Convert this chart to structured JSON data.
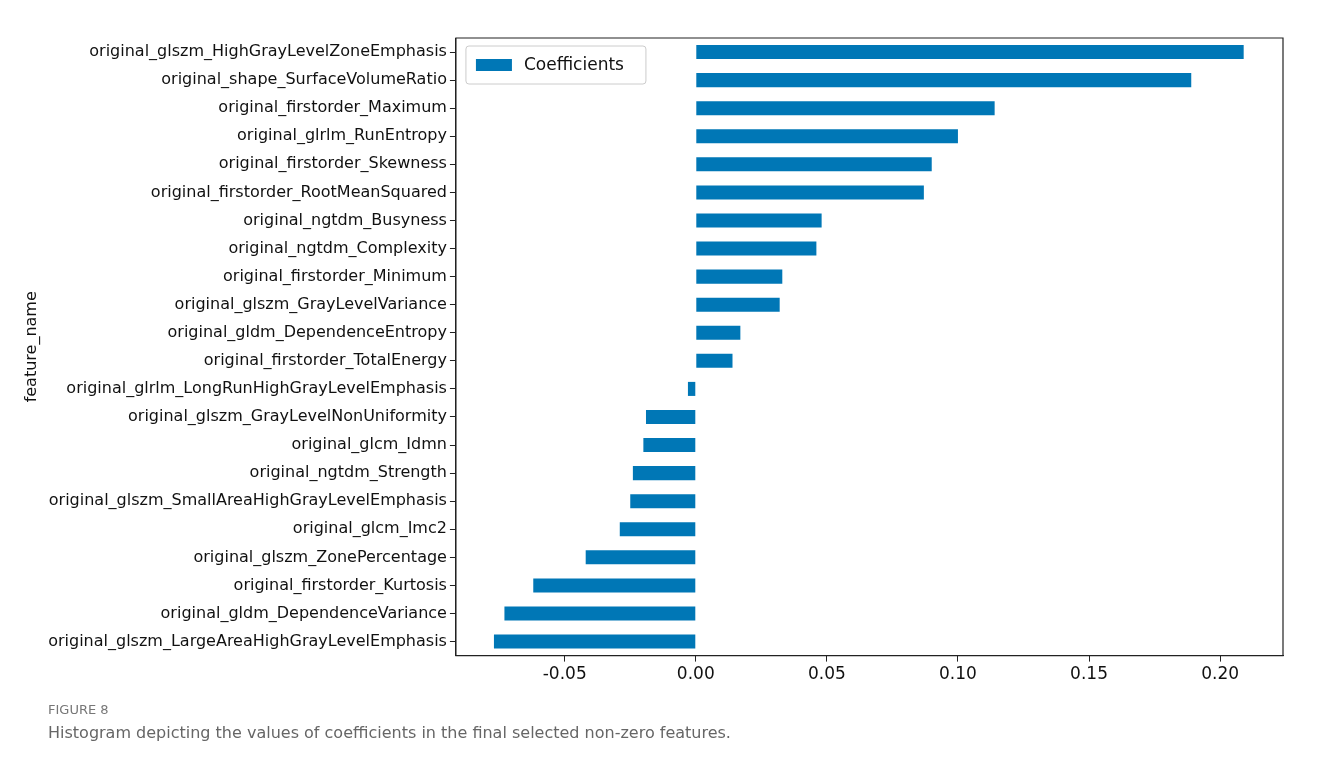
{
  "chart_data": {
    "type": "bar",
    "orientation": "horizontal",
    "ylabel": "feature_name",
    "categories": [
      "original_glszm_HighGrayLevelZoneEmphasis",
      "original_shape_SurfaceVolumeRatio",
      "original_firstorder_Maximum",
      "original_glrlm_RunEntropy",
      "original_firstorder_Skewness",
      "original_firstorder_RootMeanSquared",
      "original_ngtdm_Busyness",
      "original_ngtdm_Complexity",
      "original_firstorder_Minimum",
      "original_glszm_GrayLevelVariance",
      "original_gldm_DependenceEntropy",
      "original_firstorder_TotalEnergy",
      "original_glrlm_LongRunHighGrayLevelEmphasis",
      "original_glszm_GrayLevelNonUniformity",
      "original_glcm_Idmn",
      "original_ngtdm_Strength",
      "original_glszm_SmallAreaHighGrayLevelEmphasis",
      "original_glcm_Imc2",
      "original_glszm_ZonePercentage",
      "original_firstorder_Kurtosis",
      "original_gldm_DependenceVariance",
      "original_glszm_LargeAreaHighGrayLevelEmphasis"
    ],
    "series": [
      {
        "name": "Coefficients",
        "color": "#0077b6",
        "values": [
          0.209,
          0.189,
          0.114,
          0.1,
          0.09,
          0.087,
          0.048,
          0.046,
          0.033,
          0.032,
          0.017,
          0.014,
          -0.003,
          -0.019,
          -0.02,
          -0.024,
          -0.025,
          -0.029,
          -0.042,
          -0.062,
          -0.073,
          -0.077
        ]
      }
    ],
    "xlim": [
      -0.0915,
      0.224
    ],
    "xticks": [
      {
        "value": -0.05,
        "label": "-0.05"
      },
      {
        "value": 0,
        "label": "0.00"
      },
      {
        "value": 0.05,
        "label": "0.05"
      },
      {
        "value": 0.1,
        "label": "0.10"
      },
      {
        "value": 0.15,
        "label": "0.15"
      },
      {
        "value": 0.2,
        "label": "0.20"
      }
    ],
    "grid": false,
    "legend": "top left",
    "annotations": [
      "FIGURE 8",
      "Histogram depicting the values of coefficients in the final selected non-zero features."
    ]
  }
}
